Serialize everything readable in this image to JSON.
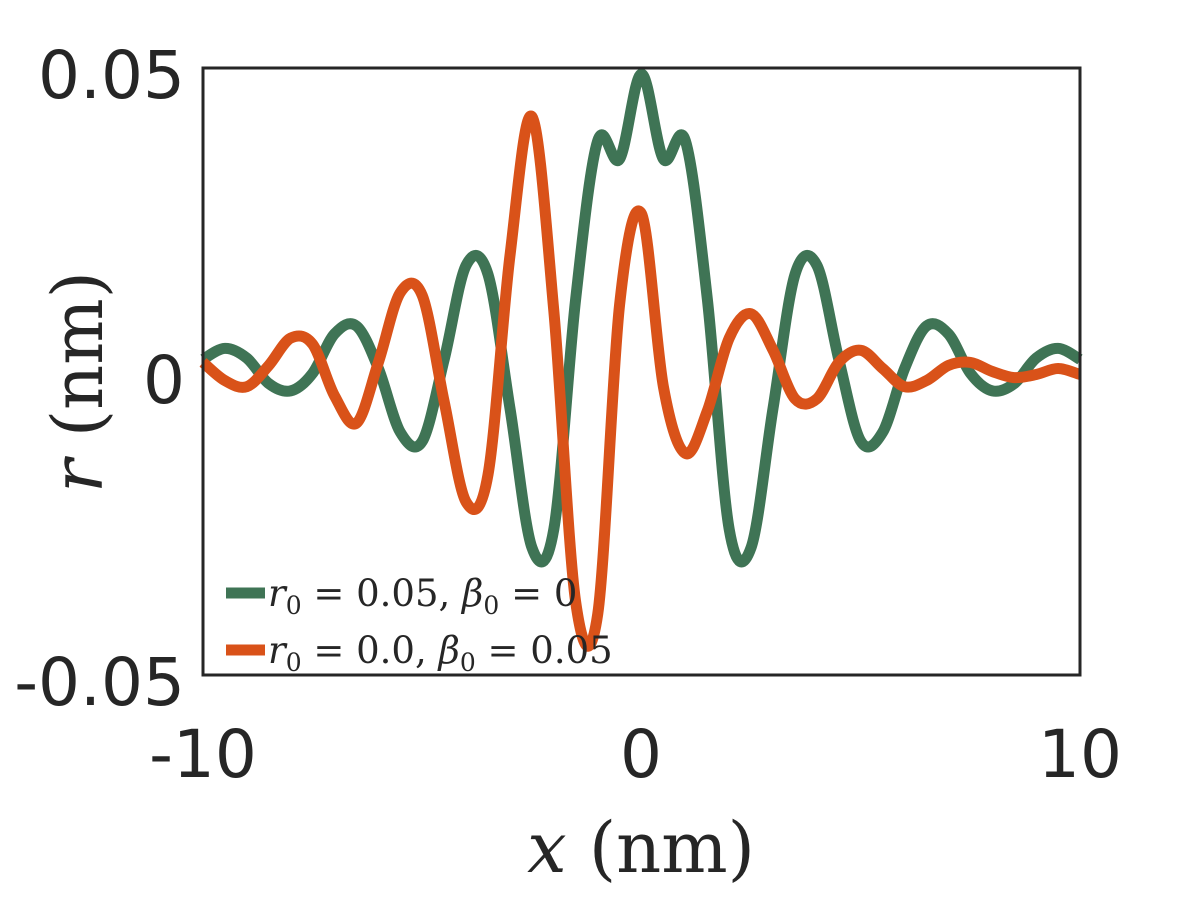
{
  "chart_data": {
    "type": "line",
    "xlabel": {
      "var": "x",
      "unit": "(nm)"
    },
    "ylabel": {
      "var": "r",
      "unit": "(nm)"
    },
    "xlim": [
      -10,
      10
    ],
    "ylim": [
      -0.05,
      0.05
    ],
    "xticks": [
      -10,
      0,
      10
    ],
    "xtick_labels": [
      "-10",
      "0",
      "10"
    ],
    "yticks": [
      -0.05,
      0,
      0.05
    ],
    "ytick_labels": [
      "-0.05",
      "0",
      "0.05"
    ],
    "grid": false,
    "legend_position": "lower-left",
    "series": [
      {
        "name": "r0 = 0.05, β0 = 0",
        "legend": {
          "a": "r",
          "a_sub": "0",
          "a_val": " = 0.05, ",
          "b": "β",
          "b_sub": "0",
          "b_val": " = 0"
        },
        "color": "#3f7455",
        "x": [
          -10,
          -9.5,
          -9,
          -8.5,
          -8,
          -7.5,
          -7,
          -6.5,
          -6,
          -5.5,
          -5,
          -4.5,
          -4,
          -3.5,
          -3,
          -2.5,
          -2,
          -1.5,
          -1,
          -0.5,
          0,
          0.5,
          1,
          1.5,
          2,
          2.5,
          3,
          3.5,
          4,
          4.5,
          5,
          5.5,
          6,
          6.5,
          7,
          7.5,
          8,
          8.5,
          9,
          9.5,
          10
        ],
        "y": [
          0.002,
          0.0038,
          0.0022,
          -0.002,
          -0.0032,
          -0.0003,
          0.0062,
          0.0075,
          0.0005,
          -0.01,
          -0.0115,
          0.002,
          0.0175,
          0.016,
          -0.006,
          -0.029,
          -0.026,
          0.012,
          0.038,
          0.035,
          0.049,
          0.035,
          0.038,
          0.012,
          -0.026,
          -0.029,
          -0.006,
          0.016,
          0.0175,
          0.002,
          -0.0115,
          -0.01,
          0.0005,
          0.0075,
          0.0062,
          -0.0003,
          -0.0032,
          -0.002,
          0.0022,
          0.0038,
          0.002
        ]
      },
      {
        "name": "r0 = 0.0, β0 = 0.05",
        "legend": {
          "a": "r",
          "a_sub": "0",
          "a_val": " = 0.0, ",
          "b": "β",
          "b_sub": "0",
          "b_val": " = 0.05"
        },
        "color": "#d95219",
        "x": [
          -10,
          -9.5,
          -9,
          -8.5,
          -8,
          -7.5,
          -7,
          -6.5,
          -6,
          -5.5,
          -5,
          -4.5,
          -4,
          -3.5,
          -3,
          -2.5,
          -2,
          -1.5,
          -1,
          -0.5,
          0,
          0.5,
          1,
          1.5,
          2,
          2.5,
          3,
          3.5,
          4,
          4.5,
          5,
          5.5,
          6,
          6.5,
          7,
          7.5,
          8,
          8.5,
          9,
          9.5,
          10
        ],
        "y": [
          0.0015,
          -0.0015,
          -0.0025,
          0.001,
          0.0055,
          0.0045,
          -0.004,
          -0.0085,
          0.0015,
          0.013,
          0.0125,
          -0.005,
          -0.0215,
          -0.017,
          0.019,
          0.042,
          0.01,
          -0.038,
          -0.04,
          0.011,
          0.026,
          -0.0025,
          -0.0135,
          -0.0065,
          0.0055,
          0.0095,
          0.0035,
          -0.0045,
          -0.0045,
          0.0015,
          0.0035,
          0.0005,
          -0.0025,
          -0.0015,
          0.001,
          0.0015,
          0.0,
          -0.001,
          -0.0005,
          0.0005,
          -0.0005
        ]
      }
    ]
  }
}
